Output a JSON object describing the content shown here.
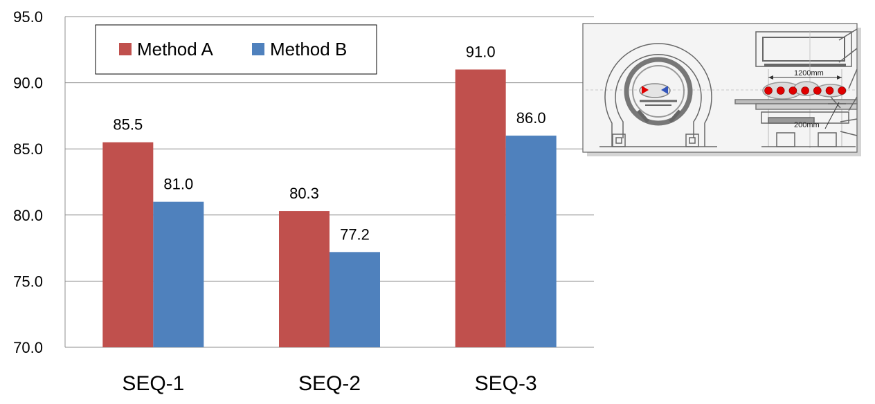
{
  "chart_data": {
    "type": "bar",
    "categories": [
      "SEQ-1",
      "SEQ-2",
      "SEQ-3"
    ],
    "series": [
      {
        "name": "Method A",
        "values": [
          85.5,
          80.3,
          91.0
        ],
        "color": "#C0504D"
      },
      {
        "name": "Method B",
        "values": [
          81.0,
          77.2,
          86.0
        ],
        "color": "#4F81BD"
      }
    ],
    "y_ticks": [
      "70.0",
      "75.0",
      "80.0",
      "85.0",
      "90.0",
      "95.0"
    ],
    "data_labels": [
      [
        "85.5",
        "80.3",
        "91.0"
      ],
      [
        "81.0",
        "77.2",
        "86.0"
      ]
    ],
    "ylim": [
      70,
      95
    ],
    "grid": true,
    "legend": "top-left, inside plot",
    "title": "",
    "xlabel": "",
    "ylabel": ""
  },
  "inset": {
    "dimension_long": "1200mm",
    "dimension_short": "200mm"
  },
  "colors": {
    "grid": "#8c8c8c",
    "inset_bg": "#f2f2f2",
    "marker_red": "#e00000"
  }
}
